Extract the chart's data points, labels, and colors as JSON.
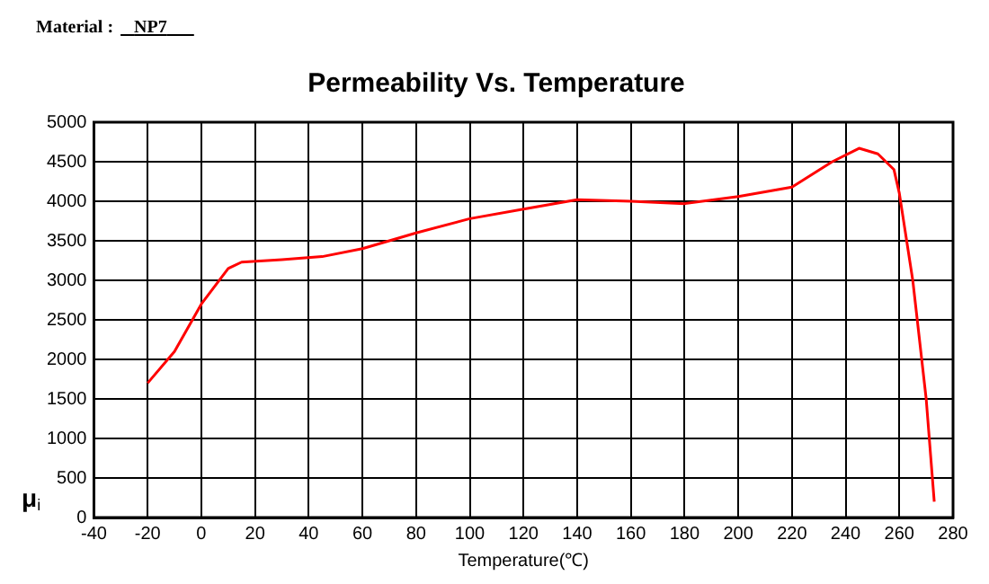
{
  "chart_data": {
    "type": "line",
    "title": "Permeability Vs. Temperature",
    "xlabel": "Temperature(℃)",
    "ylabel": "μ$_{i}$",
    "annotations": [
      "Material :",
      "NP7"
    ],
    "series": [
      {
        "color": "#ff0000",
        "x": [
          -20,
          -10,
          0,
          10,
          15,
          30,
          45,
          60,
          80,
          100,
          120,
          140,
          160,
          180,
          200,
          220,
          235,
          245,
          252,
          258,
          260,
          265,
          270,
          273
        ],
        "values": [
          1700,
          2100,
          2700,
          3150,
          3230,
          3260,
          3300,
          3400,
          3600,
          3780,
          3900,
          4020,
          4000,
          3970,
          4060,
          4180,
          4500,
          4670,
          4600,
          4400,
          4100,
          3000,
          1500,
          200
        ]
      }
    ],
    "xlim": [
      -40,
      280
    ],
    "xticks": [
      -40,
      -20,
      0,
      20,
      40,
      60,
      80,
      100,
      120,
      140,
      160,
      180,
      200,
      220,
      240,
      260,
      280
    ],
    "ylim": [
      0,
      5000
    ],
    "yticks": [
      0,
      500,
      1000,
      1500,
      2000,
      2500,
      3000,
      3500,
      4000,
      4500,
      5000
    ],
    "grid": true,
    "legend": false,
    "marker": "none",
    "line_style": "solid"
  }
}
